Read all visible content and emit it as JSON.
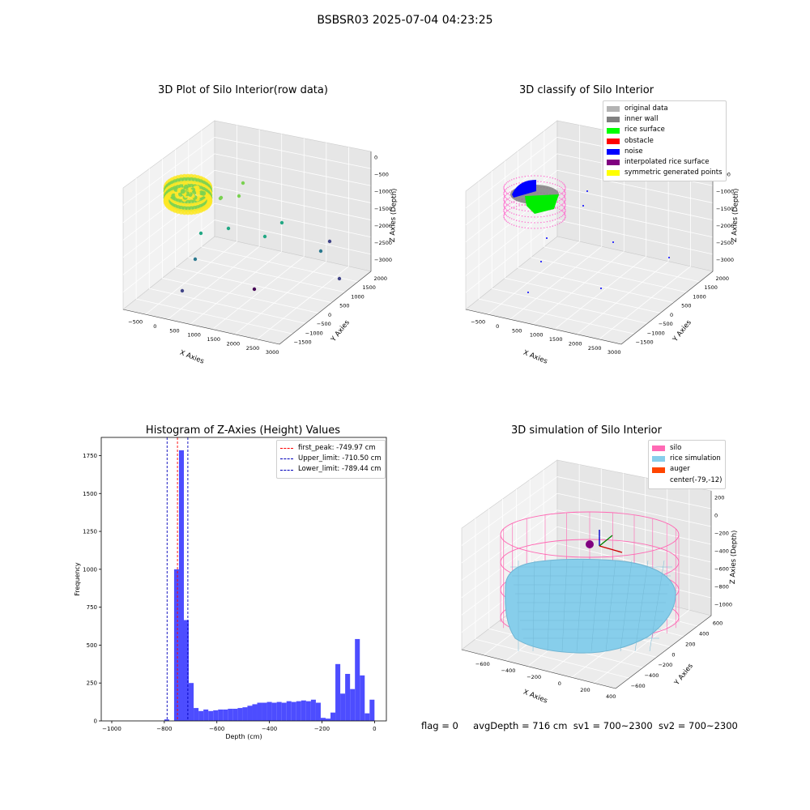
{
  "page": {
    "title": "BSBSR03 2025-07-04 04:23:25",
    "status": {
      "flag": "flag = 0",
      "avg_depth": "avgDepth = 716 cm",
      "sv1": "sv1 = 700~2300",
      "sv2": "sv2 = 700~2300"
    }
  },
  "chart_data": [
    {
      "type": "scatter",
      "title": "3D Plot of Silo Interior(row data)",
      "xlabel": "X Axies",
      "ylabel": "Y Axies",
      "zlabel": "Z Axies (Depth)",
      "x_ticks": [
        "−500",
        "0",
        "500",
        "1000",
        "1500",
        "2000",
        "2500",
        "3000"
      ],
      "y_ticks": [
        "−1500",
        "−1000",
        "−500",
        "0",
        "500",
        "1000",
        "1500",
        "2000"
      ],
      "z_ticks": [
        "0",
        "−500",
        "−1000",
        "−1500",
        "−2000",
        "−2500",
        "−3000"
      ],
      "xlim": [
        -600,
        3100
      ],
      "ylim": [
        -1600,
        2100
      ],
      "zlim": [
        -3300,
        0
      ],
      "colormap": [
        "#fde725",
        "#7ad151",
        "#22a884",
        "#2a788e",
        "#414487",
        "#440154"
      ]
    },
    {
      "type": "scatter",
      "title": "3D classify of Silo Interior",
      "xlabel": "X Axies",
      "ylabel": "Y Axies",
      "zlabel": "Z Axies (Depth)",
      "x_ticks": [
        "−500",
        "0",
        "500",
        "1000",
        "1500",
        "2000",
        "2500",
        "3000"
      ],
      "y_ticks": [
        "−1500",
        "−1000",
        "−500",
        "0",
        "500",
        "1000",
        "1500",
        "2000"
      ],
      "z_ticks": [
        "0",
        "−500",
        "−1000",
        "−1500",
        "−2000",
        "−2500",
        "−3000"
      ],
      "legend": [
        {
          "label": "original data",
          "color": "#b3b3b3"
        },
        {
          "label": "inner wall",
          "color": "#808080"
        },
        {
          "label": "rice surface",
          "color": "#00ff00"
        },
        {
          "label": "obstacle",
          "color": "#ff0000"
        },
        {
          "label": "noise",
          "color": "#0000ff"
        },
        {
          "label": "interpolated rice surface",
          "color": "#800080"
        },
        {
          "label": "symmetric generated points",
          "color": "#ffff00"
        }
      ]
    },
    {
      "type": "bar",
      "title": "Histogram of Z-Axies (Height) Values",
      "xlabel": "Depth (cm)",
      "ylabel": "Frequency",
      "xlim": [
        -1040,
        45
      ],
      "ylim": [
        0,
        1870
      ],
      "x_ticks": [
        -1000,
        -800,
        -600,
        -400,
        -200,
        0
      ],
      "y_ticks": [
        0,
        250,
        500,
        750,
        1000,
        1250,
        1500,
        1750
      ],
      "bar_color": "#4d4dff",
      "bin_width": 18.6,
      "bins": [
        {
          "x": -800,
          "v": 10
        },
        {
          "x": -781.4,
          "v": 0
        },
        {
          "x": -762.8,
          "v": 1000
        },
        {
          "x": -744.2,
          "v": 1785
        },
        {
          "x": -725.6,
          "v": 665
        },
        {
          "x": -707,
          "v": 250
        },
        {
          "x": -688.4,
          "v": 85
        },
        {
          "x": -669.8,
          "v": 65
        },
        {
          "x": -651.2,
          "v": 75
        },
        {
          "x": -632.6,
          "v": 65
        },
        {
          "x": -614,
          "v": 70
        },
        {
          "x": -595.4,
          "v": 75
        },
        {
          "x": -576.8,
          "v": 75
        },
        {
          "x": -558.2,
          "v": 80
        },
        {
          "x": -539.6,
          "v": 80
        },
        {
          "x": -521,
          "v": 85
        },
        {
          "x": -502.4,
          "v": 90
        },
        {
          "x": -483.8,
          "v": 100
        },
        {
          "x": -465.2,
          "v": 110
        },
        {
          "x": -446.6,
          "v": 120
        },
        {
          "x": -428,
          "v": 120
        },
        {
          "x": -409.4,
          "v": 125
        },
        {
          "x": -390.8,
          "v": 120
        },
        {
          "x": -372.2,
          "v": 125
        },
        {
          "x": -353.6,
          "v": 120
        },
        {
          "x": -335,
          "v": 130
        },
        {
          "x": -316.4,
          "v": 125
        },
        {
          "x": -297.8,
          "v": 130
        },
        {
          "x": -279.2,
          "v": 135
        },
        {
          "x": -260.6,
          "v": 130
        },
        {
          "x": -242,
          "v": 140
        },
        {
          "x": -223.4,
          "v": 120
        },
        {
          "x": -204.8,
          "v": 20
        },
        {
          "x": -186.2,
          "v": 15
        },
        {
          "x": -167.6,
          "v": 55
        },
        {
          "x": -149,
          "v": 375
        },
        {
          "x": -130.4,
          "v": 180
        },
        {
          "x": -111.8,
          "v": 310
        },
        {
          "x": -93.2,
          "v": 210
        },
        {
          "x": -74.6,
          "v": 540
        },
        {
          "x": -56,
          "v": 300
        },
        {
          "x": -37.4,
          "v": 50
        },
        {
          "x": -18.8,
          "v": 140
        }
      ],
      "lines": [
        {
          "label": "first_peak: -749.97 cm",
          "x": -749.97,
          "color": "#ff0000"
        },
        {
          "label": "Upper_limit: -710.50 cm",
          "x": -710.5,
          "color": "#0000bb"
        },
        {
          "label": "Lower_limit: -789.44 cm",
          "x": -789.44,
          "color": "#0000bb"
        }
      ]
    },
    {
      "type": "scatter",
      "title": "3D simulation of Silo Interior",
      "xlabel": "X Axies",
      "ylabel": "Y Axies",
      "zlabel": "Z Axies (Depth)",
      "x_ticks": [
        "−600",
        "−400",
        "−200",
        "0",
        "200",
        "400"
      ],
      "y_ticks": [
        "−600",
        "−400",
        "−200",
        "0",
        "200",
        "400",
        "600"
      ],
      "z_ticks": [
        "200",
        "0",
        "−200",
        "−400",
        "−600",
        "−800",
        "−1000"
      ],
      "legend": [
        {
          "label": "silo",
          "color": "#ff69b4"
        },
        {
          "label": "rice simulation",
          "color": "#87ceeb"
        },
        {
          "label": "auger",
          "color": "#ff4500"
        },
        {
          "label": "center(-79,-12)",
          "color": ""
        }
      ]
    }
  ]
}
